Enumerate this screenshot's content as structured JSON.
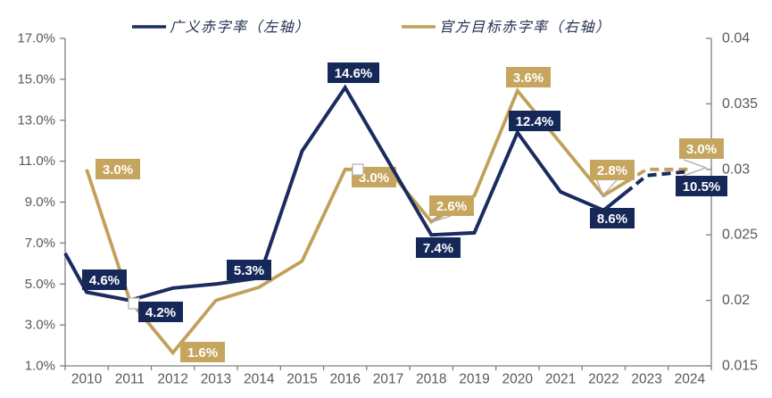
{
  "legend": {
    "items": [
      {
        "label": "广义赤字率（左轴）",
        "color_key": "navy"
      },
      {
        "label": "官方目标赤字率（右轴）",
        "color_key": "gold"
      }
    ]
  },
  "colors": {
    "navy": "#1A2C5F",
    "navy_box": "#152858",
    "gold": "#C2A05A",
    "gold_box": "#C6A55F",
    "axis": "#808080",
    "tick_text": "#595959",
    "leader": "#A8A8A8",
    "marker_border": "#B7B7B7",
    "label_text": "#FFFFFF"
  },
  "chart_data": {
    "type": "line",
    "categories": [
      "2010",
      "2011",
      "2012",
      "2013",
      "2014",
      "2015",
      "2016",
      "2017",
      "2018",
      "2019",
      "2020",
      "2021",
      "2022",
      "2023",
      "2024"
    ],
    "series": [
      {
        "name": "广义赤字率（左轴）",
        "axis": "left",
        "unit": "%",
        "color_key": "navy",
        "edge_start_value": 6.5,
        "values": [
          4.6,
          4.2,
          4.8,
          5.0,
          5.3,
          11.5,
          14.6,
          11.0,
          7.4,
          7.5,
          12.4,
          9.5,
          8.6,
          10.3,
          10.5
        ],
        "point_labels": [
          {
            "year": "2010",
            "text": "4.6%"
          },
          {
            "year": "2011",
            "text": "4.2%"
          },
          {
            "year": "2014",
            "text": "5.3%"
          },
          {
            "year": "2016",
            "text": "14.6%"
          },
          {
            "year": "2018",
            "text": "7.4%"
          },
          {
            "year": "2020",
            "text": "12.4%"
          },
          {
            "year": "2022",
            "text": "8.6%"
          },
          {
            "year": "2024",
            "text": "10.5%"
          }
        ]
      },
      {
        "name": "官方目标赤字率（右轴）",
        "axis": "right",
        "unit": "ratio",
        "color_key": "gold",
        "values": [
          0.03,
          0.02,
          0.016,
          0.02,
          0.021,
          0.023,
          0.03,
          0.03,
          0.026,
          0.028,
          0.036,
          0.032,
          0.028,
          0.03,
          0.03
        ],
        "point_labels": [
          {
            "year": "2010",
            "text": "3.0%"
          },
          {
            "year": "2012",
            "text": "1.6%"
          },
          {
            "year": "2016",
            "text": "3.0%"
          },
          {
            "year": "2018",
            "text": "2.6%"
          },
          {
            "year": "2020",
            "text": "3.6%"
          },
          {
            "year": "2022",
            "text": "2.8%"
          },
          {
            "year": "2024",
            "text": "3.0%"
          }
        ]
      }
    ],
    "left_axis": {
      "min": 1,
      "max": 17,
      "tick_labels": [
        "17.0%",
        "15.0%",
        "13.0%",
        "11.0%",
        "9.0%",
        "7.0%",
        "5.0%",
        "3.0%",
        "1.0%"
      ]
    },
    "right_axis": {
      "min": 0.015,
      "max": 0.04,
      "tick_labels": [
        "0.04",
        "0.035",
        "0.03",
        "0.025",
        "0.02",
        "0.015"
      ]
    },
    "x_axis": {
      "tick_labels": [
        "2010",
        "2011",
        "2012",
        "2013",
        "2014",
        "2015",
        "2016",
        "2017",
        "2018",
        "2019",
        "2020",
        "2021",
        "2022",
        "2023",
        "2024"
      ]
    },
    "grid": false,
    "legend_position": "top",
    "dashed_forecast_years": [
      "2023",
      "2024"
    ]
  }
}
